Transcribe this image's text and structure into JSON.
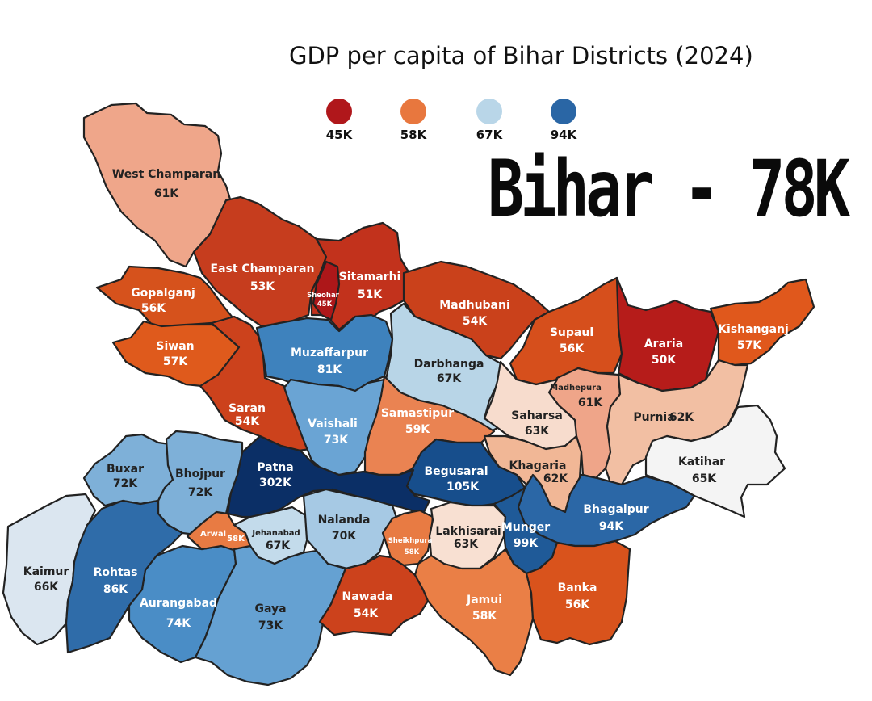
{
  "title": "GDP per capita of Bihar Districts (2024)",
  "headline": "Bihar - 78K",
  "legend": [
    {
      "label": "45K",
      "color": "#b0171b"
    },
    {
      "label": "58K",
      "color": "#e8773e"
    },
    {
      "label": "67K",
      "color": "#b9d6e8"
    },
    {
      "label": "94K",
      "color": "#2a66a5"
    }
  ],
  "districts": {
    "west_champaran": {
      "name": "West Champaran",
      "value": "61K",
      "color": "#efa68a"
    },
    "east_champaran": {
      "name": "East Champaran",
      "value": "53K",
      "color": "#c63d1e"
    },
    "sheohar": {
      "name": "Sheohar",
      "value": "45K",
      "color": "#ad1719"
    },
    "sitamarhi": {
      "name": "Sitamarhi",
      "value": "51K",
      "color": "#c2321c"
    },
    "madhubani": {
      "name": "Madhubani",
      "value": "54K",
      "color": "#ca411b"
    },
    "supaul": {
      "name": "Supaul",
      "value": "56K",
      "color": "#d64f1c"
    },
    "araria": {
      "name": "Araria",
      "value": "50K",
      "color": "#b61c1a"
    },
    "kishanganj": {
      "name": "Kishanganj",
      "value": "57K",
      "color": "#e0581c"
    },
    "gopalganj": {
      "name": "Gopalganj",
      "value": "56K",
      "color": "#d6521c"
    },
    "siwan": {
      "name": "Siwan",
      "value": "57K",
      "color": "#df5a1c"
    },
    "saran": {
      "name": "Saran",
      "value": "54K",
      "color": "#cc421c"
    },
    "muzaffarpur": {
      "name": "Muzaffarpur",
      "value": "81K",
      "color": "#3e82bd"
    },
    "darbhanga": {
      "name": "Darbhanga",
      "value": "67K",
      "color": "#b8d5e7"
    },
    "madhepura": {
      "name": "Madhepura",
      "value": "61K",
      "color": "#efa589"
    },
    "saharsa": {
      "name": "Saharsa",
      "value": "63K",
      "color": "#f7dccd"
    },
    "purnia": {
      "name": "Purnia",
      "value": "62K",
      "color": "#f2bfa3"
    },
    "katihar": {
      "name": "Katihar",
      "value": "65K",
      "color": "#f4f4f4"
    },
    "vaishali": {
      "name": "Vaishali",
      "value": "73K",
      "color": "#6aa4d4"
    },
    "samastipur": {
      "name": "Samastipur",
      "value": "59K",
      "color": "#ea8352"
    },
    "khagaria": {
      "name": "Khagaria",
      "value": "62K",
      "color": "#f1b796"
    },
    "begusarai": {
      "name": "Begusarai",
      "value": "105K",
      "color": "#174e8c"
    },
    "patna": {
      "name": "Patna",
      "value": "302K",
      "color": "#0b2f66"
    },
    "bhagalpur": {
      "name": "Bhagalpur",
      "value": "94K",
      "color": "#2b67a6"
    },
    "buxar": {
      "name": "Buxar",
      "value": "72K",
      "color": "#7eb0d8"
    },
    "bhojpur": {
      "name": "Bhojpur",
      "value": "72K",
      "color": "#7eb0d8"
    },
    "nalanda": {
      "name": "Nalanda",
      "value": "70K",
      "color": "#a6c9e4"
    },
    "jehanabad": {
      "name": "Jehanabad",
      "value": "67K",
      "color": "#c3dbeb"
    },
    "arwal": {
      "name": "Arwal",
      "value": "58K",
      "color": "#e87b43"
    },
    "sheikhpura": {
      "name": "Sheikhpura",
      "value": "58K",
      "color": "#e87b43"
    },
    "lakhisarai": {
      "name": "Lakhisarai",
      "value": "63K",
      "color": "#f8e0d2"
    },
    "munger": {
      "name": "Munger",
      "value": "99K",
      "color": "#1f5a98"
    },
    "kaimur": {
      "name": "Kaimur",
      "value": "66K",
      "color": "#dbe6f0"
    },
    "rohtas": {
      "name": "Rohtas",
      "value": "86K",
      "color": "#2f6ca9"
    },
    "aurangabad": {
      "name": "Aurangabad",
      "value": "74K",
      "color": "#4a8dc6"
    },
    "gaya": {
      "name": "Gaya",
      "value": "73K",
      "color": "#65a1d2"
    },
    "nawada": {
      "name": "Nawada",
      "value": "54K",
      "color": "#cc421c"
    },
    "jamui": {
      "name": "Jamui",
      "value": "58K",
      "color": "#ea7f46"
    },
    "banka": {
      "name": "Banka",
      "value": "56K",
      "color": "#d9531c"
    }
  }
}
